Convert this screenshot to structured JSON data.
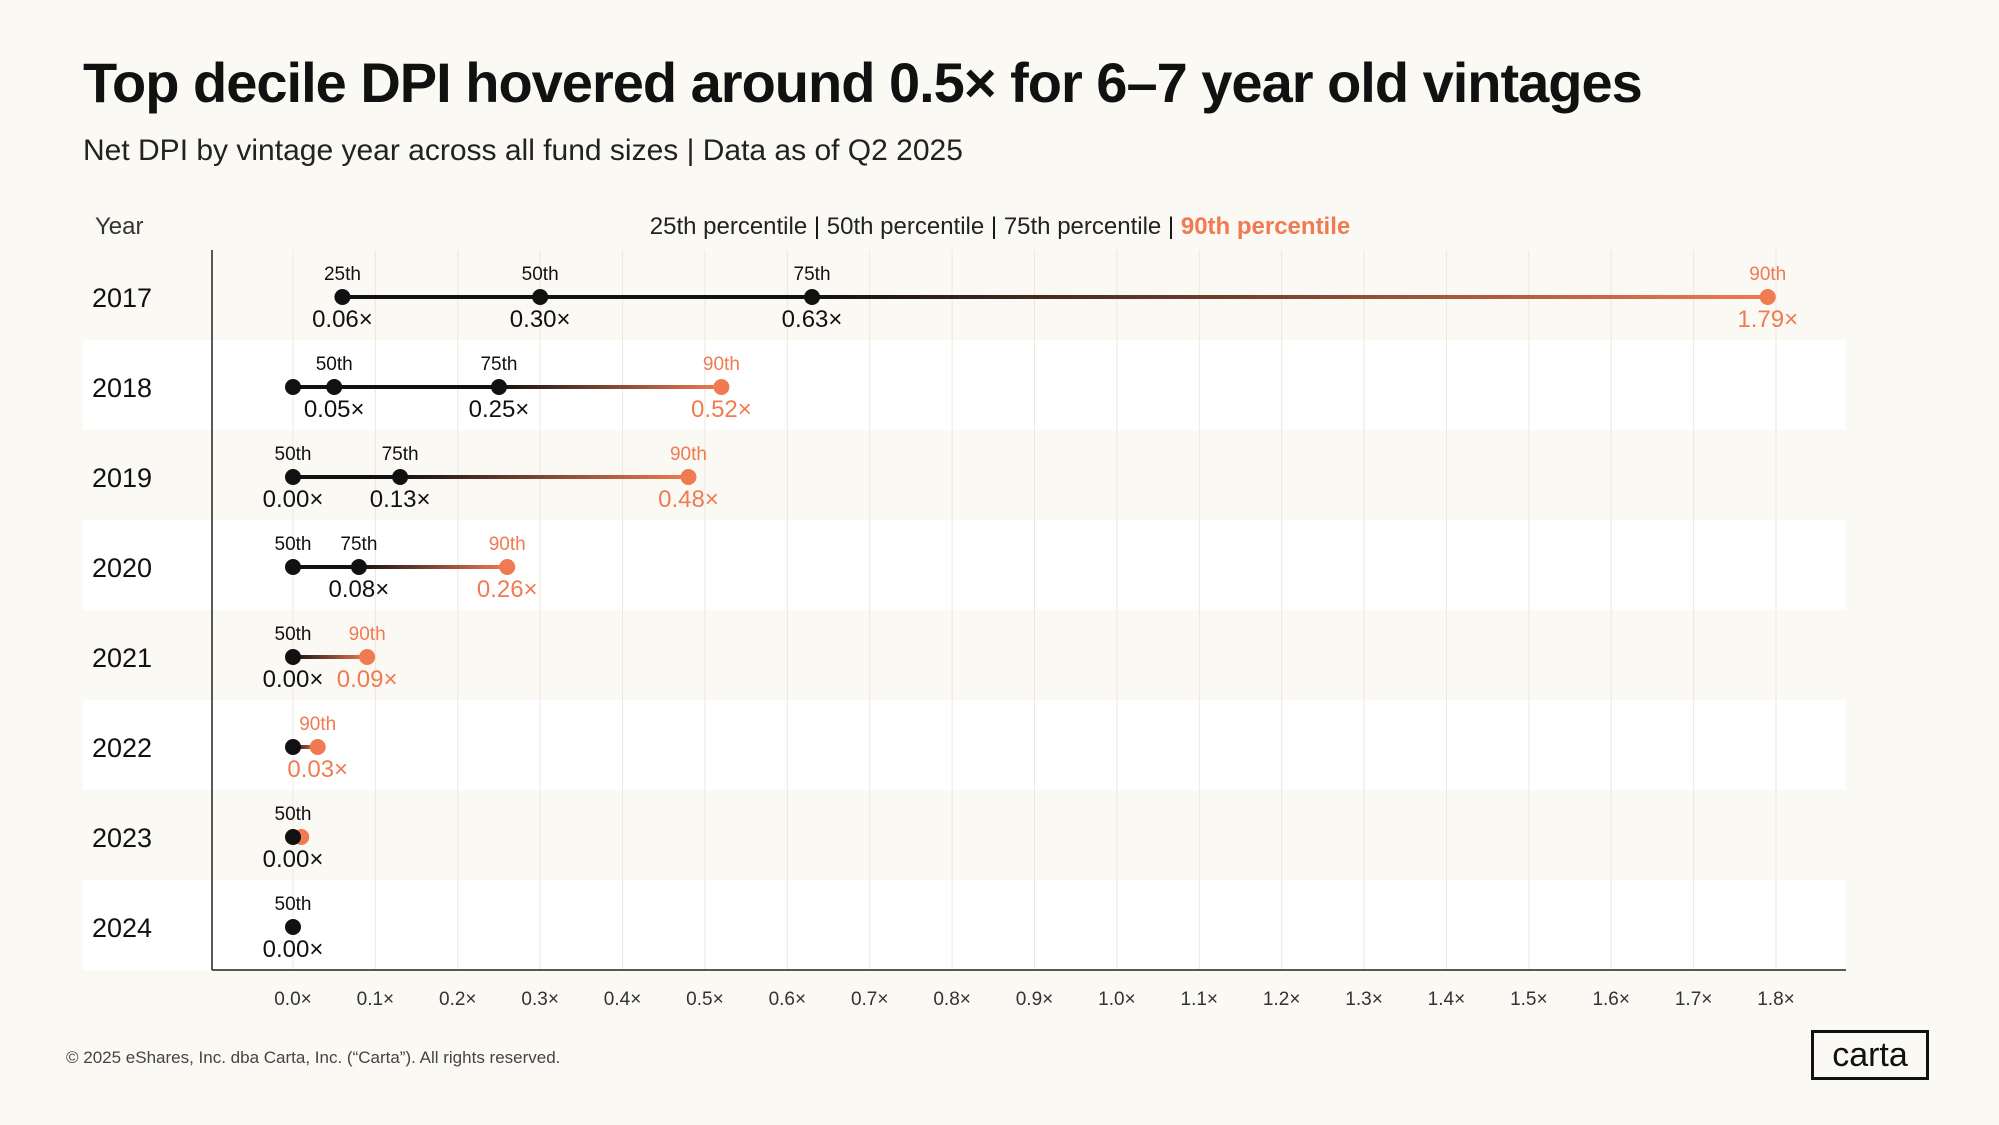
{
  "title": "Top decile DPI hovered around 0.5× for 6–7 year old vintages",
  "subtitle": "Net DPI by vintage year across all fund sizes | Data as of Q2 2025",
  "footer": "© 2025 eShares, Inc. dba Carta, Inc. (“Carta”). All rights reserved.",
  "logo_text": "carta",
  "colors": {
    "background": "#fbf9f4",
    "band": "#ffffff",
    "dark": "#111111",
    "accent": "#f07a52",
    "grid": "#ece8e0"
  },
  "chart_data": {
    "type": "dot-range",
    "year_header": "Year",
    "legend": [
      {
        "label": "25th percentile",
        "highlight": false
      },
      {
        "label": "50th percentile",
        "highlight": false
      },
      {
        "label": "75th percentile",
        "highlight": false
      },
      {
        "label": "90th percentile",
        "highlight": true
      }
    ],
    "xlim": [
      0,
      1.8
    ],
    "xticks": [
      0,
      0.1,
      0.2,
      0.3,
      0.4,
      0.5,
      0.6,
      0.7,
      0.8,
      0.9,
      1.0,
      1.1,
      1.2,
      1.3,
      1.4,
      1.5,
      1.6,
      1.7,
      1.8
    ],
    "tick_labels": [
      "0.0×",
      "0.1×",
      "0.2×",
      "0.3×",
      "0.4×",
      "0.5×",
      "0.6×",
      "0.7×",
      "0.8×",
      "0.9×",
      "1.0×",
      "1.1×",
      "1.2×",
      "1.3×",
      "1.4×",
      "1.5×",
      "1.6×",
      "1.7×",
      "1.8×"
    ],
    "rows": [
      {
        "year": "2017",
        "points": [
          {
            "x": 0.06,
            "color": "dark",
            "pct": "25th",
            "value": "0.06×"
          },
          {
            "x": 0.3,
            "color": "dark",
            "pct": "50th",
            "value": "0.30×"
          },
          {
            "x": 0.63,
            "color": "dark",
            "pct": "75th",
            "value": "0.63×"
          },
          {
            "x": 1.79,
            "color": "accent",
            "pct": "90th",
            "value": "1.79×"
          }
        ]
      },
      {
        "year": "2018",
        "points": [
          {
            "x": 0.0,
            "color": "dark"
          },
          {
            "x": 0.05,
            "color": "dark",
            "pct": "50th",
            "value": "0.05×"
          },
          {
            "x": 0.25,
            "color": "dark",
            "pct": "75th",
            "value": "0.25×"
          },
          {
            "x": 0.52,
            "color": "accent",
            "pct": "90th",
            "value": "0.52×"
          }
        ]
      },
      {
        "year": "2019",
        "points": [
          {
            "x": 0.0,
            "color": "dark",
            "pct": "50th",
            "value": "0.00×"
          },
          {
            "x": 0.13,
            "color": "dark",
            "pct": "75th",
            "value": "0.13×"
          },
          {
            "x": 0.48,
            "color": "accent",
            "pct": "90th",
            "value": "0.48×"
          }
        ]
      },
      {
        "year": "2020",
        "points": [
          {
            "x": 0.0,
            "color": "dark",
            "pct": "50th"
          },
          {
            "x": 0.08,
            "color": "dark",
            "pct": "75th",
            "value": "0.08×"
          },
          {
            "x": 0.26,
            "color": "accent",
            "pct": "90th",
            "value": "0.26×"
          }
        ]
      },
      {
        "year": "2021",
        "points": [
          {
            "x": 0.0,
            "color": "dark",
            "pct": "50th",
            "value": "0.00×"
          },
          {
            "x": 0.09,
            "color": "accent",
            "pct": "90th",
            "value": "0.09×"
          }
        ]
      },
      {
        "year": "2022",
        "points": [
          {
            "x": 0.0,
            "color": "dark"
          },
          {
            "x": 0.03,
            "color": "accent",
            "pct": "90th",
            "value": "0.03×"
          }
        ]
      },
      {
        "year": "2023",
        "points": [
          {
            "x": 0.01,
            "color": "accent"
          },
          {
            "x": 0.0,
            "color": "dark",
            "pct": "50th",
            "value": "0.00×"
          }
        ]
      },
      {
        "year": "2024",
        "points": [
          {
            "x": 0.0,
            "color": "dark",
            "pct": "50th",
            "value": "0.00×"
          }
        ]
      }
    ]
  }
}
